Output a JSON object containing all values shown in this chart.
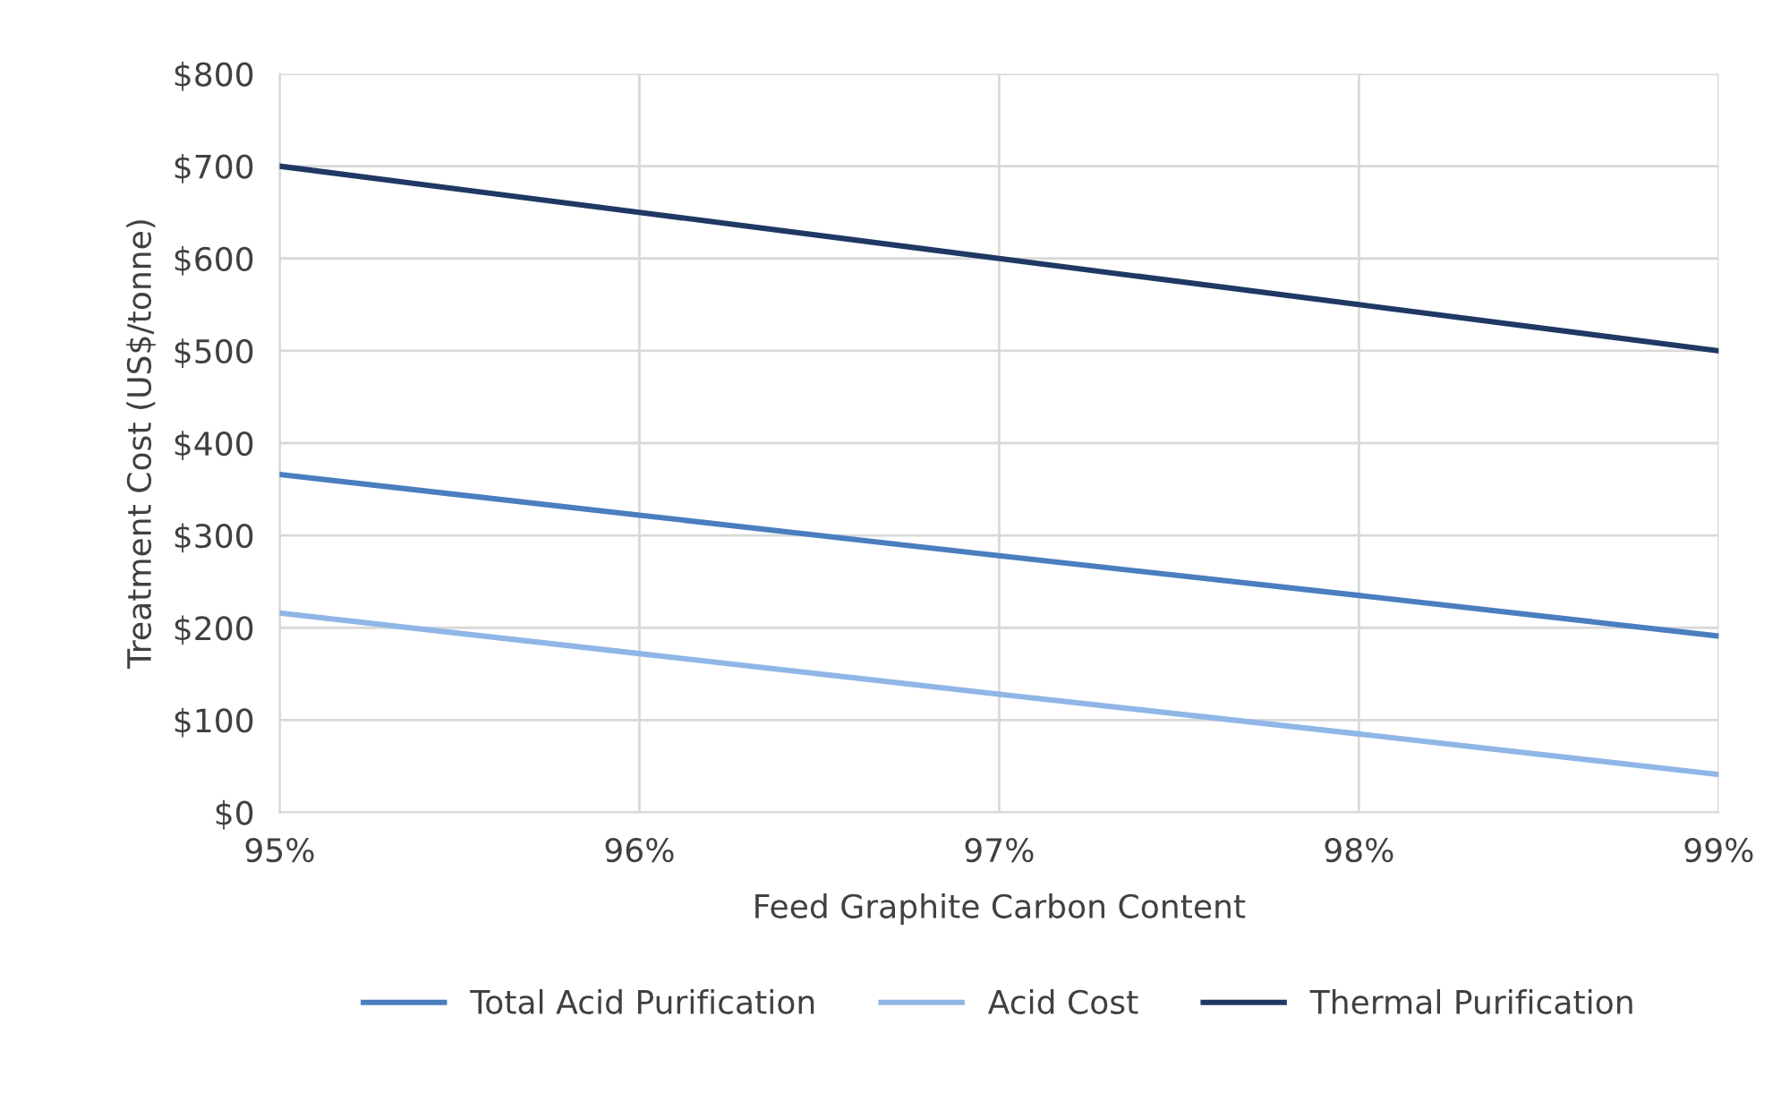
{
  "chart_data": {
    "type": "line",
    "x": [
      95,
      96,
      97,
      98,
      99
    ],
    "xlim": [
      95,
      99
    ],
    "xticks": [
      {
        "value": 95,
        "label": "95%"
      },
      {
        "value": 96,
        "label": "96%"
      },
      {
        "value": 97,
        "label": "97%"
      },
      {
        "value": 98,
        "label": "98%"
      },
      {
        "value": 99,
        "label": "99%"
      }
    ],
    "ylim": [
      0,
      800
    ],
    "yticks": [
      {
        "value": 0,
        "label": "$0"
      },
      {
        "value": 100,
        "label": "$100"
      },
      {
        "value": 200,
        "label": "$200"
      },
      {
        "value": 300,
        "label": "$300"
      },
      {
        "value": 400,
        "label": "$400"
      },
      {
        "value": 500,
        "label": "$500"
      },
      {
        "value": 600,
        "label": "$600"
      },
      {
        "value": 700,
        "label": "$700"
      },
      {
        "value": 800,
        "label": "$800"
      }
    ],
    "xlabel": "Feed Graphite Carbon Content",
    "ylabel": "Treatment Cost (US$/tonne)",
    "grid": true,
    "legend": "bottom",
    "series": [
      {
        "name": "Total Acid Purification",
        "color": "#4a7ebf",
        "values": [
          366,
          322,
          278,
          235,
          191
        ]
      },
      {
        "name": "Acid Cost",
        "color": "#8fb6e6",
        "values": [
          216,
          172,
          128,
          85,
          41
        ]
      },
      {
        "name": "Thermal Purification",
        "color": "#1f3864",
        "values": [
          700,
          650,
          600,
          550,
          500
        ]
      }
    ]
  }
}
